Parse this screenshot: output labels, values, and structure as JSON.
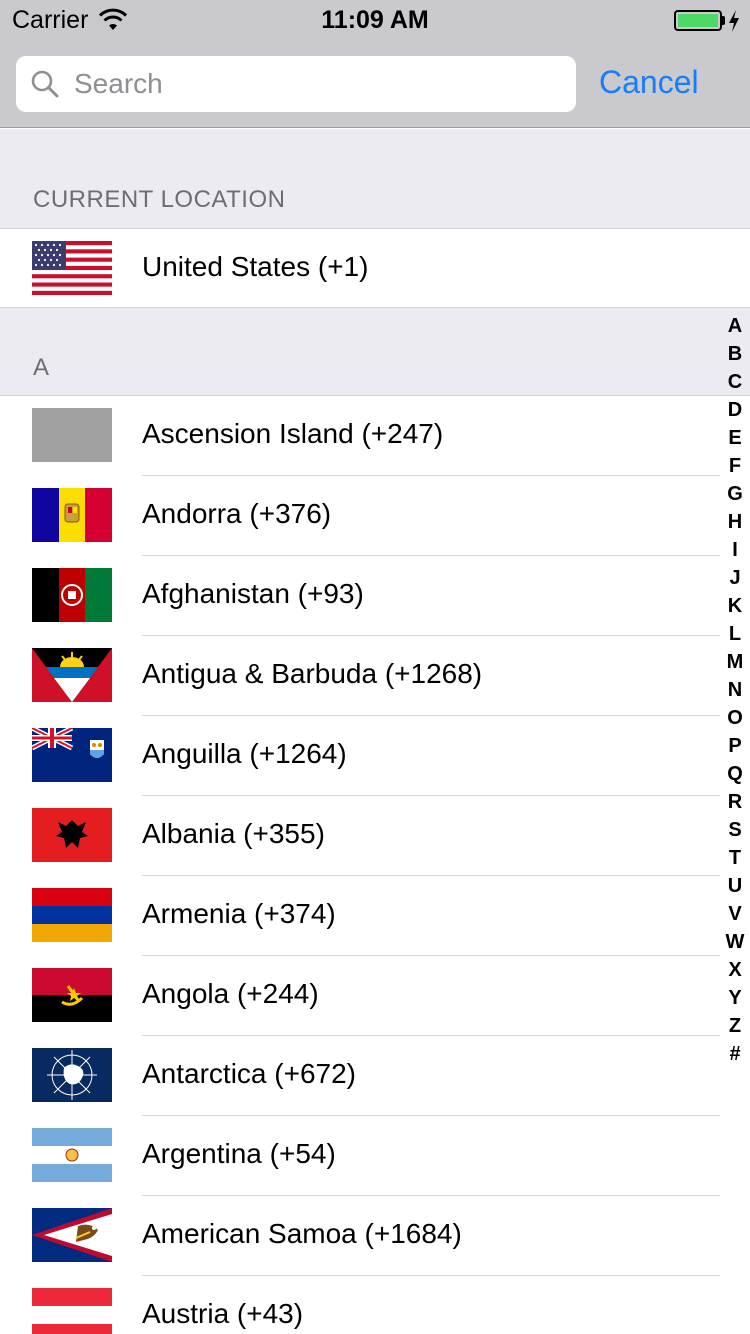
{
  "status_bar": {
    "carrier": "Carrier",
    "time": "11:09 AM",
    "battery_level": 1.0,
    "battery_color": "#4cd964"
  },
  "search": {
    "placeholder": "Search",
    "value": "",
    "icon": "search-icon"
  },
  "cancel_label": "Cancel",
  "accent_color": "#157efb",
  "current_section": {
    "header": "CURRENT LOCATION",
    "item": {
      "label": "United States (+1)",
      "flag": "us-flag-icon"
    }
  },
  "section_a": {
    "header": "A",
    "items": [
      {
        "label": "Ascension Island (+247)",
        "flag": "placeholder-flag-icon"
      },
      {
        "label": "Andorra (+376)",
        "flag": "andorra-flag-icon"
      },
      {
        "label": "Afghanistan (+93)",
        "flag": "afghanistan-flag-icon"
      },
      {
        "label": "Antigua & Barbuda (+1268)",
        "flag": "antigua-flag-icon"
      },
      {
        "label": "Anguilla (+1264)",
        "flag": "anguilla-flag-icon"
      },
      {
        "label": "Albania (+355)",
        "flag": "albania-flag-icon"
      },
      {
        "label": "Armenia (+374)",
        "flag": "armenia-flag-icon"
      },
      {
        "label": "Angola (+244)",
        "flag": "angola-flag-icon"
      },
      {
        "label": "Antarctica (+672)",
        "flag": "antarctica-flag-icon"
      },
      {
        "label": "Argentina (+54)",
        "flag": "argentina-flag-icon"
      },
      {
        "label": "American Samoa (+1684)",
        "flag": "american-samoa-flag-icon"
      },
      {
        "label": "Austria (+43)",
        "flag": "austria-flag-icon"
      }
    ]
  },
  "index_letters": [
    "A",
    "B",
    "C",
    "D",
    "E",
    "F",
    "G",
    "H",
    "I",
    "J",
    "K",
    "L",
    "M",
    "N",
    "O",
    "P",
    "Q",
    "R",
    "S",
    "T",
    "U",
    "V",
    "W",
    "X",
    "Y",
    "Z",
    "#"
  ]
}
